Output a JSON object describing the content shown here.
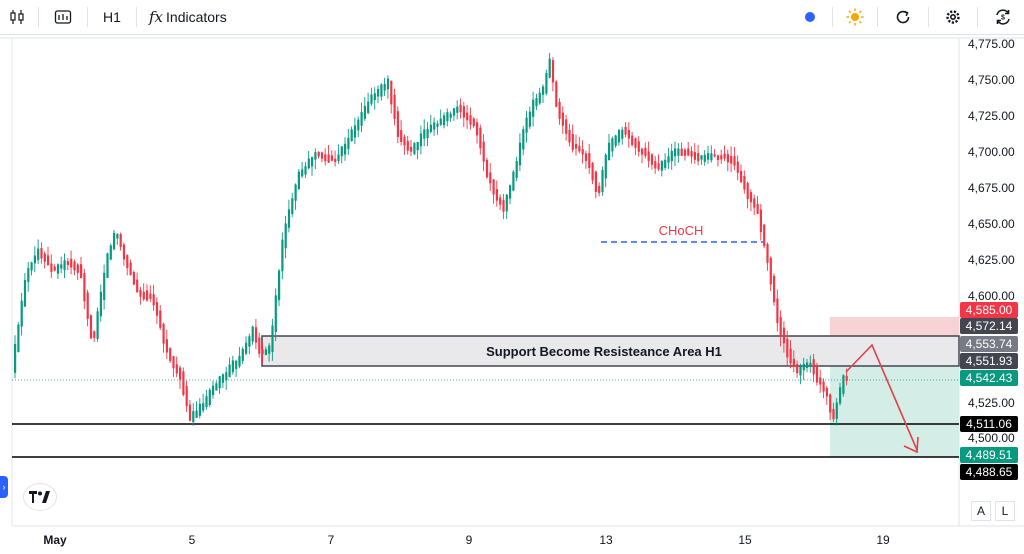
{
  "toolbar": {
    "timeframe": "H1",
    "indicators_label": "Indicators",
    "indicators_glyph": "fx",
    "icons": [
      "candles-icon",
      "add-symbol-icon",
      "live-dot-icon",
      "theme-sun-icon",
      "undo-icon",
      "settings-icon",
      "snapshot-icon"
    ]
  },
  "chart": {
    "price_ticks": [
      "4,775.00",
      "4,750.00",
      "4,725.00",
      "4,700.00",
      "4,675.00",
      "4,650.00",
      "4,625.00",
      "4,600.00",
      "4,525.00",
      "4,500.00"
    ],
    "date_ticks": [
      "May",
      "5",
      "7",
      "9",
      "13",
      "15",
      "19"
    ],
    "price_labels": [
      {
        "text": "4,585.00",
        "color": "#f23645"
      },
      {
        "text": "4,572.14",
        "color": "#434651"
      },
      {
        "text": "4,553.74",
        "color": "#787b86"
      },
      {
        "text": "4,551.93",
        "color": "#434651"
      },
      {
        "text": "4,542.43",
        "color": "#089981"
      },
      {
        "text": "4,511.06",
        "color": "#000000"
      },
      {
        "text": "4,489.51",
        "color": "#089981"
      },
      {
        "text": "4,488.65",
        "color": "#000000"
      }
    ],
    "annotation_zone": "Support Become Resisteance Area H1",
    "annotation_choch": "CHoCH",
    "scale_buttons": [
      "A",
      "L"
    ],
    "colors": {
      "up": "#089981",
      "down": "#f23645",
      "choch": "#f23645",
      "choch_line": "#2962ff",
      "zone_fill": "#e9e9ec",
      "target_fill": "#d4ede6",
      "stop_fill": "#f8d3d6",
      "arrow": "#e0424b"
    }
  }
}
